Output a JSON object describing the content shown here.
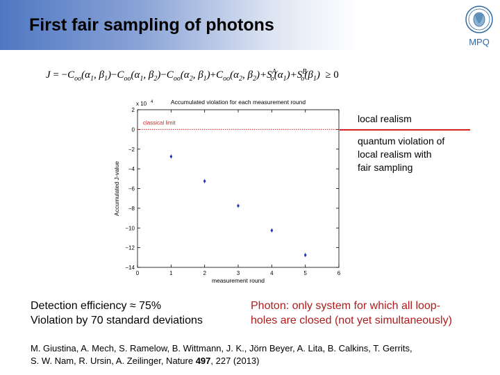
{
  "slide": {
    "title": "First fair sampling of photons",
    "logo_text": "MPQ"
  },
  "formula": {
    "lhs": "J",
    "equals": "=",
    "terms": [
      {
        "sign": "−",
        "text": "C",
        "sub": "oo",
        "args": "(α",
        "a1": "1",
        "mid": ", β",
        "a2": "1",
        "close": ")"
      },
      {
        "sign": "−",
        "text": "C",
        "sub": "oo",
        "args": "(α",
        "a1": "1",
        "mid": ", β",
        "a2": "2",
        "close": ")"
      },
      {
        "sign": "−",
        "text": "C",
        "sub": "oo",
        "args": "(α",
        "a1": "2",
        "mid": ", β",
        "a2": "1",
        "close": ")"
      },
      {
        "sign": "+",
        "text": "C",
        "sub": "oo",
        "args": "(α",
        "a1": "2",
        "mid": ", β",
        "a2": "2",
        "close": ")"
      }
    ],
    "tail1": "+S",
    "tail1_sup": "A",
    "tail1_sub": "o",
    "tail1_arg": "(α",
    "tail1_argsub": "1",
    "tail2": "+S",
    "tail2_sup": "B",
    "tail2_sub": "o",
    "tail2_arg": "(β",
    "tail2_argsub": "1",
    "rhs": "≥ 0"
  },
  "chart_data": {
    "type": "scatter",
    "title": "Accumulated violation for each measurement round",
    "xlabel": "measurement round",
    "ylabel": "Accumulated J-value",
    "y_multiplier": "x 10",
    "y_multiplier_exp": "4",
    "xlim": [
      0,
      6
    ],
    "ylim": [
      -14,
      2
    ],
    "xticks": [
      0,
      1,
      2,
      3,
      4,
      5,
      6
    ],
    "yticks": [
      2,
      0,
      -2,
      -4,
      -6,
      -8,
      -10,
      -12,
      -14
    ],
    "ytick_labels": [
      "2",
      "0",
      "−2",
      "−4",
      "−6",
      "−8",
      "−10",
      "−12",
      "−14"
    ],
    "threshold": {
      "value": 0,
      "label": "classical limit",
      "color": "#d42020"
    },
    "series": [
      {
        "x": [
          1,
          2,
          3,
          4,
          5
        ],
        "y": [
          -2.75,
          -5.25,
          -7.75,
          -10.25,
          -12.75
        ],
        "color": "#1f2db5"
      }
    ],
    "grid": false
  },
  "legend": {
    "local_realism": "local realism",
    "quantum_lines": [
      "quantum violation of",
      "local realism with",
      "fair sampling"
    ]
  },
  "info": {
    "left_lines": [
      "Detection efficiency ≈ 75%",
      "Violation by 70 standard deviations"
    ],
    "right_lines": [
      "Photon: only system for which all loop-",
      "holes are closed (not yet simultaneously)"
    ]
  },
  "citation": {
    "line1": "M. Giustina, A. Mech, S. Ramelow, B. Wittmann, J. K., Jörn Beyer, A. Lita, B. Calkins, T. Gerrits,",
    "line2_pre": "S. W. Nam, R. Ursin, A. Zeilinger, Nature ",
    "line2_bold": "497",
    "line2_post": ", 227 (2013)"
  },
  "colors": {
    "header_blue": "#4f78c2",
    "limit_red": "#d42020",
    "marker_blue": "#1f2db5",
    "highlight_red": "#b01c1c"
  }
}
